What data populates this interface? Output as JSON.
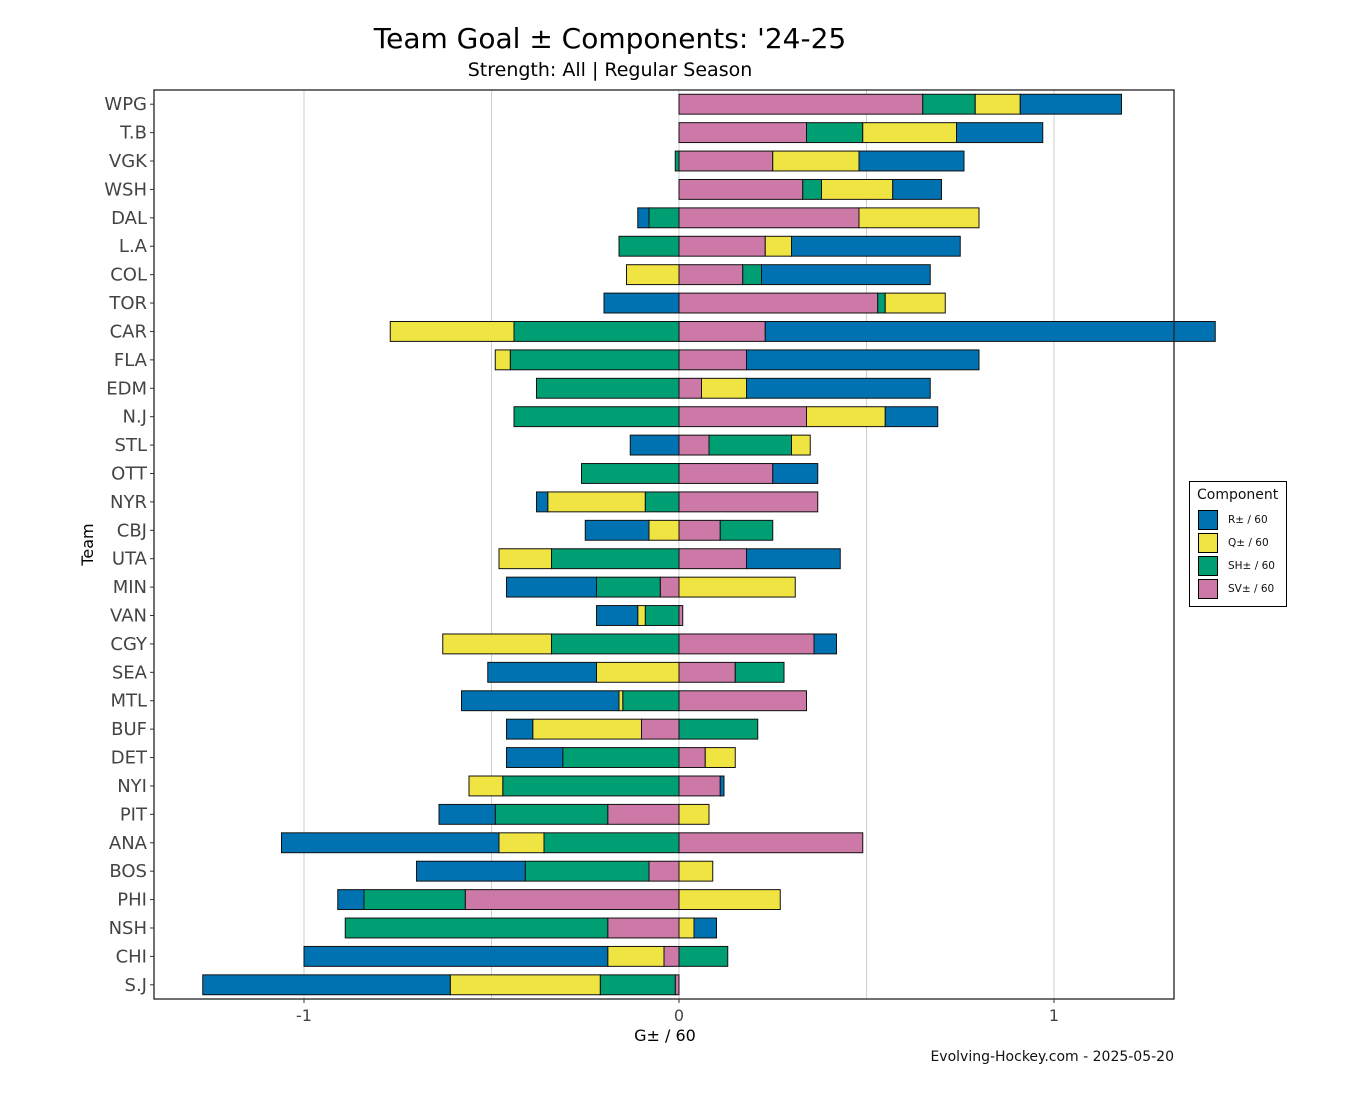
{
  "chart_data": {
    "type": "bar",
    "orientation": "horizontal",
    "stacked": "diverging",
    "title": "Team Goal ± Components: '24-25",
    "subtitle": "Strength: All  |  Regular Season",
    "xlabel": "G± / 60",
    "ylabel": "Team",
    "xlim": [
      -1.4,
      1.32
    ],
    "xticks": [
      -1,
      0,
      1
    ],
    "xtick_labels": [
      "-1",
      "0",
      "1"
    ],
    "grid": "vertical",
    "legend_title": "Component",
    "legend_position": "right",
    "caption": "Evolving-Hockey.com - 2025-05-20",
    "categories": [
      "WPG",
      "T.B",
      "VGK",
      "WSH",
      "DAL",
      "L.A",
      "COL",
      "TOR",
      "CAR",
      "FLA",
      "EDM",
      "N.J",
      "STL",
      "OTT",
      "NYR",
      "CBJ",
      "UTA",
      "MIN",
      "VAN",
      "CGY",
      "SEA",
      "MTL",
      "BUF",
      "DET",
      "NYI",
      "PIT",
      "ANA",
      "BOS",
      "PHI",
      "NSH",
      "CHI",
      "S.J"
    ],
    "series": [
      {
        "name": "R± / 60",
        "color": "#0072B2",
        "values": [
          0.27,
          0.23,
          0.28,
          0.13,
          -0.03,
          0.45,
          0.45,
          -0.2,
          1.2,
          0.62,
          0.49,
          0.14,
          -0.13,
          0.12,
          -0.03,
          -0.17,
          0.25,
          -0.24,
          -0.11,
          0.06,
          -0.29,
          -0.42,
          -0.07,
          -0.15,
          0.01,
          -0.15,
          -0.58,
          -0.29,
          -0.07,
          0.06,
          -0.81,
          -0.66
        ]
      },
      {
        "name": "Q± / 60",
        "color": "#F0E442",
        "values": [
          0.12,
          0.25,
          0.23,
          0.19,
          0.32,
          0.07,
          -0.14,
          0.16,
          -0.33,
          -0.04,
          0.12,
          0.21,
          0.05,
          0,
          -0.26,
          -0.08,
          -0.14,
          0.31,
          -0.02,
          -0.29,
          -0.22,
          -0.01,
          -0.29,
          0.08,
          -0.09,
          0.08,
          -0.12,
          0.09,
          0.27,
          0.04,
          -0.15,
          -0.4
        ]
      },
      {
        "name": "SH± / 60",
        "color": "#009E73",
        "values": [
          0.14,
          0.15,
          -0.01,
          0.05,
          -0.08,
          -0.16,
          0.05,
          0.02,
          -0.44,
          -0.45,
          -0.38,
          -0.44,
          0.22,
          -0.26,
          -0.09,
          0.14,
          -0.34,
          -0.17,
          -0.09,
          -0.34,
          0.13,
          -0.15,
          0.21,
          -0.31,
          -0.47,
          -0.3,
          -0.36,
          -0.33,
          -0.27,
          -0.7,
          0.13,
          -0.2
        ]
      },
      {
        "name": "SV± / 60",
        "color": "#CC79A7",
        "values": [
          0.65,
          0.34,
          0.25,
          0.33,
          0.48,
          0.23,
          0.17,
          0.53,
          0.23,
          0.18,
          0.06,
          0.34,
          0.08,
          0.25,
          0.37,
          0.11,
          0.18,
          -0.05,
          0.01,
          0.36,
          0.15,
          0.34,
          -0.1,
          0.07,
          0.11,
          -0.19,
          0.49,
          -0.08,
          -0.57,
          -0.19,
          -0.04,
          -0.01
        ]
      }
    ],
    "legend_order": [
      0,
      1,
      2,
      3
    ],
    "stack_order": [
      3,
      2,
      1,
      0
    ]
  }
}
